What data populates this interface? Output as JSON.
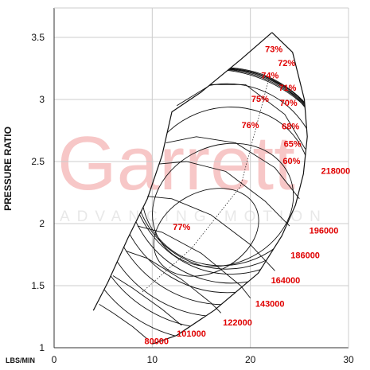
{
  "watermark": {
    "brand": "Garrett",
    "tagline": "ADVANCING MOTION"
  },
  "colors": {
    "label": "#e00000",
    "curve": "#111111",
    "grid": "#cccccc",
    "watermark": "#f7c7c7"
  },
  "chart_data": {
    "type": "line",
    "title": "",
    "xlabel": "",
    "x_unit_label": "LBS/MIN",
    "ylabel": "PRESSURE RATIO",
    "xlim": [
      0,
      30
    ],
    "ylim": [
      1,
      3.6
    ],
    "x_ticks": [
      "0",
      "10",
      "20",
      "30"
    ],
    "y_ticks": [
      "1",
      "1.5",
      "2",
      "2.5",
      "3",
      "3.5"
    ],
    "grid": true,
    "surge_line": [
      [
        4,
        1.3
      ],
      [
        5.5,
        1.53
      ],
      [
        7.5,
        1.88
      ],
      [
        9.5,
        2.2
      ],
      [
        11,
        2.55
      ],
      [
        12,
        2.9
      ],
      [
        15,
        3.06
      ],
      [
        19,
        3.32
      ],
      [
        22.2,
        3.54
      ]
    ],
    "choke_line": [
      [
        22.2,
        3.54
      ],
      [
        24.3,
        3.38
      ],
      [
        25.5,
        3.0
      ],
      [
        25.8,
        2.7
      ],
      [
        25.4,
        2.4
      ],
      [
        24.6,
        2.15
      ],
      [
        23.2,
        1.9
      ],
      [
        20.8,
        1.6
      ],
      [
        16.3,
        1.3
      ],
      [
        12.5,
        1.1
      ],
      [
        10,
        1.03
      ]
    ],
    "speed_lines": [
      {
        "label": "80000",
        "points": [
          [
            4.6,
            1.35
          ],
          [
            6,
            1.28
          ],
          [
            8,
            1.17
          ],
          [
            9.5,
            1.07
          ]
        ]
      },
      {
        "label": "101000",
        "points": [
          [
            6,
            1.58
          ],
          [
            8,
            1.48
          ],
          [
            11,
            1.31
          ],
          [
            13,
            1.18
          ]
        ]
      },
      {
        "label": "122000",
        "points": [
          [
            7.3,
            1.78
          ],
          [
            9.5,
            1.72
          ],
          [
            13,
            1.55
          ],
          [
            16,
            1.36
          ],
          [
            17,
            1.28
          ]
        ]
      },
      {
        "label": "143000",
        "points": [
          [
            8.5,
            1.98
          ],
          [
            11,
            1.93
          ],
          [
            15,
            1.76
          ],
          [
            19,
            1.5
          ],
          [
            20,
            1.4
          ]
        ]
      },
      {
        "label": "164000",
        "points": [
          [
            9.5,
            2.22
          ],
          [
            12,
            2.2
          ],
          [
            16,
            2.07
          ],
          [
            20,
            1.83
          ],
          [
            22.5,
            1.62
          ]
        ]
      },
      {
        "label": "186000",
        "points": [
          [
            10.7,
            2.48
          ],
          [
            13.5,
            2.5
          ],
          [
            17.5,
            2.42
          ],
          [
            21.5,
            2.18
          ],
          [
            24,
            1.98
          ]
        ]
      },
      {
        "label": "196000",
        "points": [
          [
            11.4,
            2.65
          ],
          [
            14.5,
            2.7
          ],
          [
            18.5,
            2.65
          ],
          [
            22.5,
            2.45
          ],
          [
            25,
            2.2
          ]
        ]
      },
      {
        "label": "218000",
        "points": [
          [
            12.5,
            2.95
          ],
          [
            16,
            3.12
          ],
          [
            19.5,
            3.12
          ],
          [
            23.5,
            2.88
          ],
          [
            25.6,
            2.6
          ]
        ]
      }
    ],
    "efficiency_islands": [
      {
        "label": "77%",
        "center": [
          15.5,
          1.93
        ],
        "rx": 6.5,
        "ry": 0.42,
        "tilt": 28
      },
      {
        "label": "76%",
        "center": [
          17.2,
          2.15
        ],
        "rx": 8.5,
        "ry": 0.62,
        "tilt": 24
      },
      {
        "label": "75%",
        "center": [
          17.5,
          2.3
        ],
        "rx": 10.0,
        "ry": 0.82,
        "tilt": 22
      },
      {
        "label": "74%",
        "center": [
          17.6,
          2.38
        ],
        "rx": 10.9,
        "ry": 0.97,
        "tilt": 20
      },
      {
        "label": "73%",
        "center": [
          17.8,
          2.42
        ],
        "rx": 11.6,
        "ry": 1.08,
        "tilt": 18
      },
      {
        "label": "72%",
        "center": [
          17.9,
          2.38
        ],
        "rx": 12.2,
        "ry": 1.12,
        "tilt": 16
      },
      {
        "label": "71%",
        "center": [
          17.5,
          2.35
        ],
        "rx": 12.9,
        "ry": 1.18,
        "tilt": 15
      },
      {
        "label": "70%",
        "center": [
          17.2,
          2.3
        ],
        "rx": 13.6,
        "ry": 1.24,
        "tilt": 14
      },
      {
        "label": "68%",
        "center": [
          16.8,
          2.25
        ],
        "rx": 14.4,
        "ry": 1.3,
        "tilt": 13
      },
      {
        "label": "65%",
        "center": [
          16.4,
          2.2
        ],
        "rx": 15.2,
        "ry": 1.36,
        "tilt": 12
      },
      {
        "label": "60%",
        "center": [
          16.0,
          2.15
        ],
        "rx": 16.0,
        "ry": 1.42,
        "tilt": 11
      }
    ],
    "efficiency_label_positions": [
      {
        "label": "73%",
        "at": [
          21.5,
          3.38
        ]
      },
      {
        "label": "72%",
        "at": [
          22.8,
          3.27
        ]
      },
      {
        "label": "74%",
        "at": [
          21.1,
          3.17
        ]
      },
      {
        "label": "71%",
        "at": [
          22.9,
          3.07
        ]
      },
      {
        "label": "75%",
        "at": [
          20.1,
          2.98
        ]
      },
      {
        "label": "70%",
        "at": [
          23.0,
          2.95
        ]
      },
      {
        "label": "76%",
        "at": [
          19.1,
          2.77
        ]
      },
      {
        "label": "68%",
        "at": [
          23.2,
          2.76
        ]
      },
      {
        "label": "65%",
        "at": [
          23.4,
          2.62
        ]
      },
      {
        "label": "60%",
        "at": [
          23.3,
          2.48
        ]
      },
      {
        "label": "77%",
        "at": [
          12.1,
          1.95
        ]
      }
    ],
    "speed_label_positions": [
      {
        "label": "218000",
        "at": [
          27.2,
          2.4
        ]
      },
      {
        "label": "196000",
        "at": [
          26.0,
          1.92
        ]
      },
      {
        "label": "186000",
        "at": [
          24.1,
          1.72
        ]
      },
      {
        "label": "164000",
        "at": [
          22.1,
          1.52
        ]
      },
      {
        "label": "143000",
        "at": [
          20.5,
          1.33
        ]
      },
      {
        "label": "122000",
        "at": [
          17.2,
          1.18
        ]
      },
      {
        "label": "101000",
        "at": [
          12.5,
          1.09
        ]
      },
      {
        "label": "80000",
        "at": [
          9.2,
          1.03
        ]
      }
    ]
  }
}
